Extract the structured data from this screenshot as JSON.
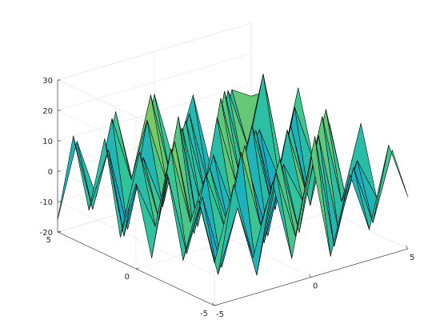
{
  "chart_data": {
    "type": "surface",
    "title": "",
    "xlabel": "",
    "ylabel": "",
    "zlabel": "",
    "xlim": [
      -5,
      5
    ],
    "ylim": [
      -5,
      5
    ],
    "zlim": [
      -20,
      30
    ],
    "x_ticks": [
      "-5",
      "0",
      "5"
    ],
    "y_ticks": [
      "-5",
      "0",
      "5"
    ],
    "z_ticks": [
      "-20",
      "-10",
      "0",
      "10",
      "20",
      "30"
    ],
    "grid": true,
    "colormap": "parula",
    "colormap_stops": [
      "#3e26a8",
      "#4367fd",
      "#2d8de8",
      "#17adc4",
      "#30c49b",
      "#8acb5d",
      "#e6c02d",
      "#fbe11f",
      "#f9fb0e"
    ],
    "x": [
      -5,
      -4,
      -3,
      -2,
      -1,
      0,
      1,
      2,
      3,
      4,
      5
    ],
    "y": [
      -5,
      -4,
      -3,
      -2,
      -1,
      0,
      1,
      2,
      3,
      4,
      5
    ],
    "z": [
      [
        -6,
        18,
        -8,
        15,
        -12,
        20,
        -15,
        10,
        -10,
        16,
        -3
      ],
      [
        12,
        -14,
        6,
        -18,
        14,
        -9,
        22,
        -16,
        8,
        -12,
        10
      ],
      [
        -10,
        9,
        -16,
        20,
        -6,
        14,
        -12,
        18,
        -14,
        6,
        -8
      ],
      [
        16,
        -12,
        12,
        -8,
        18,
        -16,
        8,
        -6,
        20,
        -10,
        14
      ],
      [
        -14,
        20,
        -6,
        10,
        -12,
        6,
        -18,
        15,
        -8,
        18,
        -12
      ],
      [
        8,
        -8,
        18,
        -14,
        10,
        -10,
        16,
        -12,
        12,
        -16,
        9
      ],
      [
        -12,
        14,
        -10,
        22,
        -16,
        18,
        -6,
        10,
        -18,
        14,
        -6
      ],
      [
        18,
        -16,
        8,
        -10,
        14,
        -14,
        20,
        -8,
        6,
        -12,
        16
      ],
      [
        -8,
        10,
        -18,
        16,
        -6,
        12,
        -14,
        18,
        -10,
        20,
        -14
      ],
      [
        14,
        -12,
        16,
        -6,
        20,
        -8,
        10,
        -16,
        14,
        -6,
        10
      ],
      [
        -16,
        8,
        -12,
        14,
        -14,
        16,
        -8,
        12,
        -16,
        10,
        6
      ]
    ]
  }
}
